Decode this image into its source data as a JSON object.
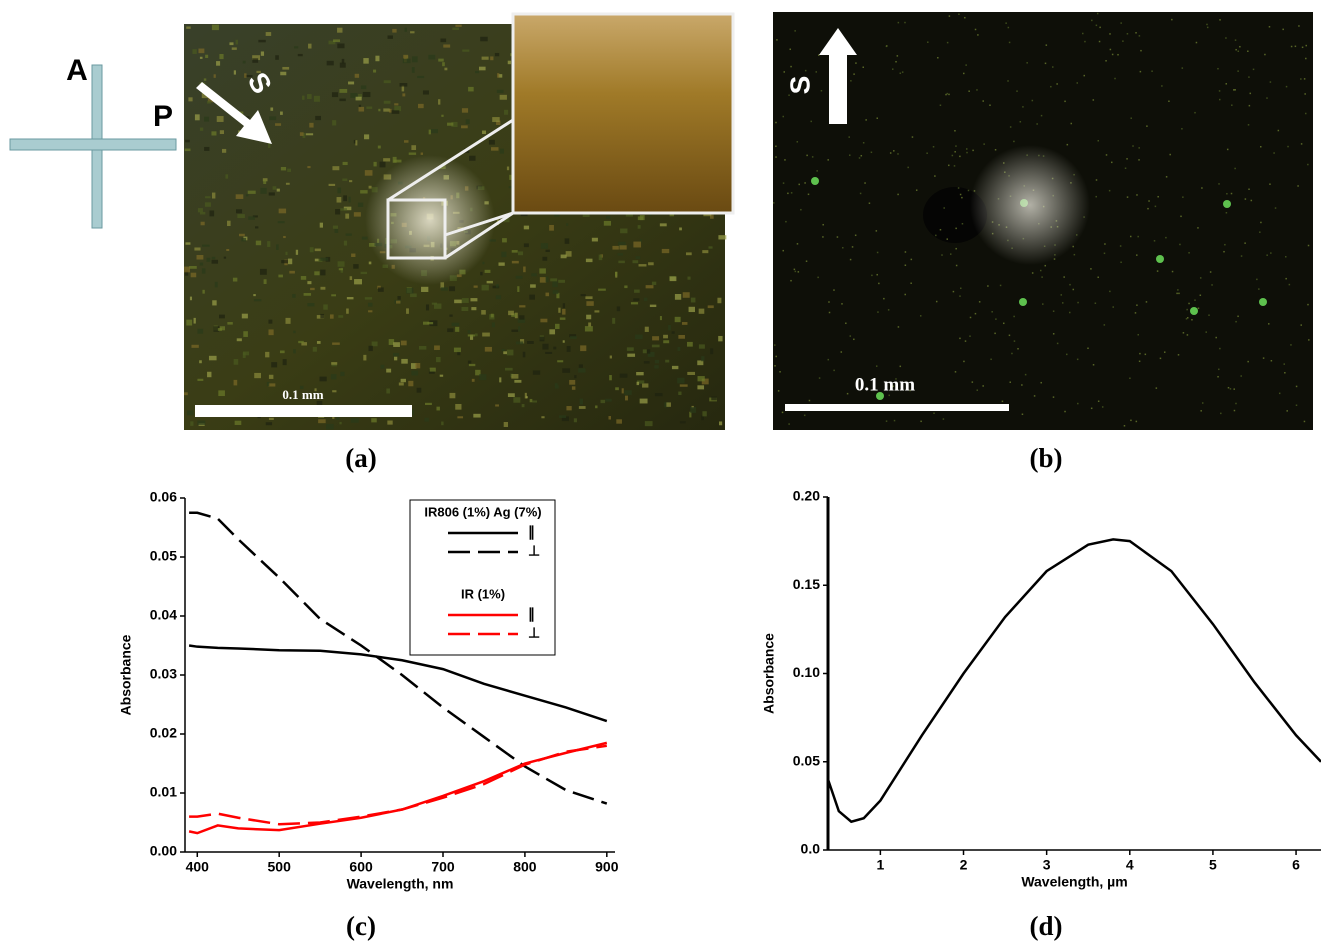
{
  "figure": {
    "polarizer_labels": [
      "A",
      "P"
    ],
    "panel_a": {
      "arrow_label": "S",
      "scale_label": "0.1 mm",
      "caption": "(a)"
    },
    "panel_b": {
      "arrow_label": "S",
      "scale_label": "0.1 mm",
      "caption": "(b)"
    },
    "panel_c": {
      "caption": "(c)"
    },
    "panel_d": {
      "caption": "(d)"
    }
  },
  "chart_data": [
    {
      "type": "line",
      "xlabel": "Wavelength, nm",
      "ylabel": "Absorbance",
      "x": [
        390,
        400,
        425,
        450,
        500,
        550,
        600,
        650,
        700,
        750,
        800,
        850,
        900
      ],
      "series": [
        {
          "name": "∥",
          "group": "IR806 (1%) Ag (7%)",
          "color": "#000000",
          "line_style": "solid",
          "values": [
            0.035,
            0.0348,
            0.0346,
            0.0345,
            0.0342,
            0.0341,
            0.0335,
            0.0325,
            0.031,
            0.0285,
            0.0265,
            0.0245,
            0.0222
          ]
        },
        {
          "name": "⊥",
          "group": "IR806 (1%) Ag (7%)",
          "color": "#000000",
          "line_style": "dashed",
          "values": [
            0.0575,
            0.0575,
            0.0565,
            0.053,
            0.0465,
            0.0395,
            0.035,
            0.03,
            0.0245,
            0.0195,
            0.0145,
            0.0105,
            0.0082
          ]
        },
        {
          "name": "∥",
          "group": "IR (1%)",
          "color": "#ff0000",
          "line_style": "solid",
          "values": [
            0.0035,
            0.0032,
            0.0045,
            0.004,
            0.0037,
            0.0048,
            0.0058,
            0.0072,
            0.0095,
            0.012,
            0.015,
            0.0168,
            0.0185
          ]
        },
        {
          "name": "⊥",
          "group": "IR (1%)",
          "color": "#ff0000",
          "line_style": "dashed",
          "values": [
            0.006,
            0.006,
            0.0065,
            0.0058,
            0.0047,
            0.005,
            0.006,
            0.0072,
            0.0092,
            0.0115,
            0.0148,
            0.017,
            0.018
          ]
        }
      ],
      "xlim": [
        385,
        910
      ],
      "xticks": [
        400,
        500,
        600,
        700,
        800,
        900
      ],
      "ylim": [
        0,
        0.06
      ],
      "yticks": [
        {
          "value": 0,
          "label": "0.00"
        },
        0.01,
        0.02,
        0.03,
        0.04,
        0.05,
        0.06
      ]
    },
    {
      "type": "line",
      "xlabel": "Wavelength, µm",
      "ylabel": "Absorbance",
      "x": [
        0.37,
        0.5,
        0.65,
        0.8,
        1,
        1.5,
        2,
        2.5,
        3,
        3.5,
        3.8,
        4,
        4.5,
        5,
        5.5,
        6,
        6.3
      ],
      "series": [
        {
          "color": "#000000",
          "line_style": "solid",
          "values": [
            0.04,
            0.022,
            0.016,
            0.018,
            0.028,
            0.065,
            0.1,
            0.132,
            0.158,
            0.173,
            0.176,
            0.175,
            0.158,
            0.128,
            0.095,
            0.065,
            0.05
          ]
        }
      ],
      "xlim": [
        0.37,
        6.3
      ],
      "xticks": [
        1,
        2,
        3,
        4,
        5,
        6
      ],
      "ylim": [
        0,
        0.2
      ],
      "yticks": [
        {
          "value": 0,
          "label": "0.0"
        },
        0.05,
        {
          "value": 0.1,
          "label": "0.10"
        },
        0.15,
        {
          "value": 0.2,
          "label": "0.20"
        }
      ]
    }
  ]
}
